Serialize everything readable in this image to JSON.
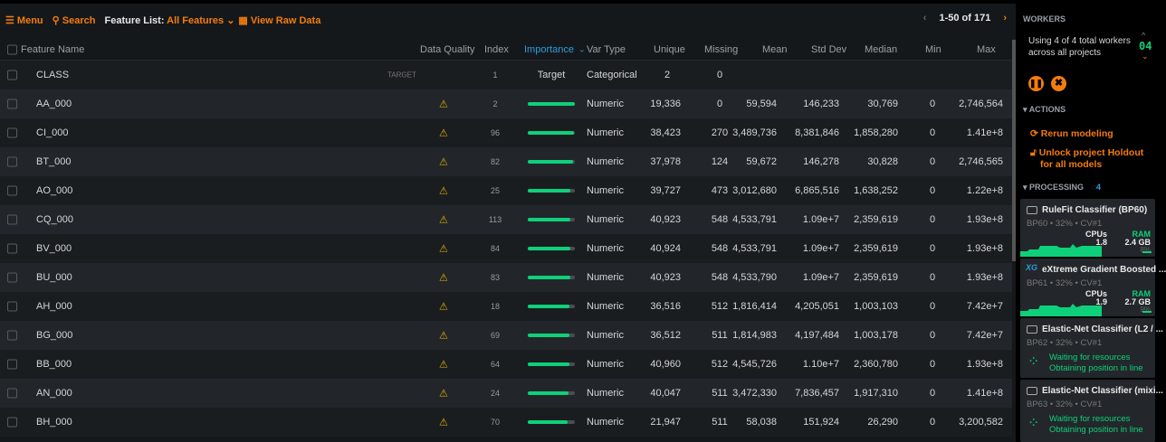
{
  "toolbar": {
    "menu": "Menu",
    "search": "Search",
    "feature_list_label": "Feature List:",
    "feature_list_value": "All Features",
    "view_raw": "View Raw Data"
  },
  "pager": {
    "range": "1-50 of 171"
  },
  "columns": [
    "Feature Name",
    "Data Quality",
    "Index",
    "Importance",
    "Var Type",
    "Unique",
    "Missing",
    "Mean",
    "Std Dev",
    "Median",
    "Min",
    "Max"
  ],
  "target_row": {
    "name": "CLASS",
    "tag": "TARGET",
    "index": "1",
    "importance": "Target",
    "type": "Categorical",
    "unique": "2",
    "missing": "0"
  },
  "rows": [
    {
      "name": "AA_000",
      "index": "2",
      "importance": 1.0,
      "type": "Numeric",
      "unique": "19,336",
      "missing": "0",
      "mean": "59,594",
      "std": "146,233",
      "median": "30,769",
      "min": "0",
      "max": "2,746,564"
    },
    {
      "name": "CI_000",
      "index": "96",
      "importance": 0.98,
      "type": "Numeric",
      "unique": "38,423",
      "missing": "270",
      "mean": "3,489,736",
      "std": "8,381,846",
      "median": "1,858,280",
      "min": "0",
      "max": "1.41e+8"
    },
    {
      "name": "BT_000",
      "index": "82",
      "importance": 0.97,
      "type": "Numeric",
      "unique": "37,978",
      "missing": "124",
      "mean": "59,672",
      "std": "146,278",
      "median": "30,828",
      "min": "0",
      "max": "2,746,565"
    },
    {
      "name": "AO_000",
      "index": "25",
      "importance": 0.9,
      "type": "Numeric",
      "unique": "39,727",
      "missing": "473",
      "mean": "3,012,680",
      "std": "6,865,516",
      "median": "1,638,252",
      "min": "0",
      "max": "1.22e+8"
    },
    {
      "name": "CQ_000",
      "index": "113",
      "importance": 0.9,
      "type": "Numeric",
      "unique": "40,923",
      "missing": "548",
      "mean": "4,533,791",
      "std": "1.09e+7",
      "median": "2,359,619",
      "min": "0",
      "max": "1.93e+8"
    },
    {
      "name": "BV_000",
      "index": "84",
      "importance": 0.9,
      "type": "Numeric",
      "unique": "40,924",
      "missing": "548",
      "mean": "4,533,791",
      "std": "1.09e+7",
      "median": "2,359,619",
      "min": "0",
      "max": "1.93e+8"
    },
    {
      "name": "BU_000",
      "index": "83",
      "importance": 0.9,
      "type": "Numeric",
      "unique": "40,923",
      "missing": "548",
      "mean": "4,533,790",
      "std": "1.09e+7",
      "median": "2,359,619",
      "min": "0",
      "max": "1.93e+8"
    },
    {
      "name": "AH_000",
      "index": "18",
      "importance": 0.89,
      "type": "Numeric",
      "unique": "36,516",
      "missing": "512",
      "mean": "1,816,414",
      "std": "4,205,051",
      "median": "1,003,103",
      "min": "0",
      "max": "7.42e+7"
    },
    {
      "name": "BG_000",
      "index": "69",
      "importance": 0.88,
      "type": "Numeric",
      "unique": "36,512",
      "missing": "511",
      "mean": "1,814,983",
      "std": "4,197,484",
      "median": "1,003,178",
      "min": "0",
      "max": "7.42e+7"
    },
    {
      "name": "BB_000",
      "index": "64",
      "importance": 0.88,
      "type": "Numeric",
      "unique": "40,960",
      "missing": "512",
      "mean": "4,545,726",
      "std": "1.10e+7",
      "median": "2,360,780",
      "min": "0",
      "max": "1.93e+8"
    },
    {
      "name": "AN_000",
      "index": "24",
      "importance": 0.87,
      "type": "Numeric",
      "unique": "40,047",
      "missing": "511",
      "mean": "3,472,330",
      "std": "7,836,457",
      "median": "1,917,310",
      "min": "0",
      "max": "1.41e+8"
    },
    {
      "name": "BH_000",
      "index": "70",
      "importance": 0.85,
      "type": "Numeric",
      "unique": "21,947",
      "missing": "511",
      "mean": "58,038",
      "std": "151,924",
      "median": "26,290",
      "min": "0",
      "max": "3,200,582"
    }
  ],
  "sidebar": {
    "workers_title": "WORKERS",
    "workers_text": "Using 4 of 4 total workers across all projects",
    "workers_count": "04",
    "actions_title": "ACTIONS",
    "rerun": "Rerun modeling",
    "unlock": "Unlock project Holdout for all models",
    "processing_title": "PROCESSING",
    "processing_count": "4",
    "jobs": [
      {
        "title": "RuleFit Classifier (BP60)",
        "sub": "BP60 • 32% • CV#1",
        "cpus_label": "CPUs",
        "cpus": "1.8",
        "ram_label": "RAM",
        "ram": "2.4 GB",
        "ram_pct": "8%"
      },
      {
        "title": "eXtreme Gradient Boosted ...",
        "sub": "BP61 • 32% • CV#1",
        "cpus_label": "CPUs",
        "cpus": "1.9",
        "ram_label": "RAM",
        "ram": "2.7 GB",
        "ram_pct": "9%"
      },
      {
        "title": "Elastic-Net Classifier (L2 / ...",
        "sub": "BP62 • 32% • CV#1",
        "wait1": "Waiting for resources",
        "wait2": "Obtaining position in line"
      },
      {
        "title": "Elastic-Net Classifier (mixi...",
        "sub": "BP63 • 32% • CV#1",
        "wait1": "Waiting for resources",
        "wait2": "Obtaining position in line"
      }
    ]
  },
  "colors": {
    "accent": "#f47c0f",
    "importance": "#0fd07a",
    "link_blue": "#2d9cdb"
  }
}
